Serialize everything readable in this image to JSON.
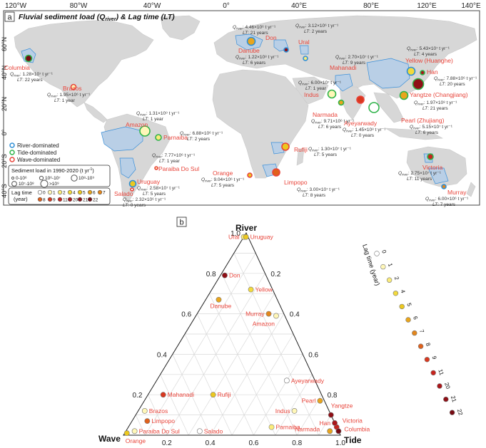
{
  "panel_a": {
    "label": "a",
    "title_main": "Fluvial sediment load (",
    "title_Q": "Q",
    "title_sub": "river",
    "title_mid": ") & Lag time (",
    "title_LT": "LT",
    "title_end": ")",
    "lon_labels": [
      "120°W",
      "80°W",
      "40°W",
      "0°",
      "40°E",
      "80°E",
      "120°E",
      "140°E"
    ],
    "lat_labels": [
      "60°N",
      "40°N",
      "20°N",
      "0°",
      "20°S",
      "40°S"
    ],
    "legend_type": [
      {
        "label": "River-dominated",
        "color": "#2f8fd6"
      },
      {
        "label": "Tide-dominated",
        "color": "#2fb34a"
      },
      {
        "label": "Wave-dominated",
        "color": "#e8443a"
      }
    ],
    "legend_size_title": "Sediment load in 1990-2020 (t yr",
    "legend_size_title_sup": "-1",
    "legend_size_title_end": ")",
    "legend_sizes": [
      "0-10⁶",
      "10⁶-10⁷",
      "10⁸-10⁹",
      "10⁷-10⁸",
      ">10⁹"
    ],
    "legend_lag_title1": "Lag time",
    "legend_lag_title2": "(year)",
    "rivers": [
      {
        "name": "Columbia",
        "q": "1.28×10⁷ t yr⁻¹",
        "lt": "22 years"
      },
      {
        "name": "Brazos",
        "q": "1.95×10⁶ t yr⁻¹",
        "lt": "1 year"
      },
      {
        "name": "Amazon",
        "q": "1.31×10⁹ t yr⁻¹",
        "lt": "1 year"
      },
      {
        "name": "Parnaiba",
        "q": "6.88×10⁶ t yr⁻¹",
        "lt": "2 years"
      },
      {
        "name": "Paraiba Do Sul",
        "q": "7.77×10⁶ t yr⁻¹",
        "lt": "1 year"
      },
      {
        "name": "Uruguay",
        "q": "2.58×10⁷ t yr⁻¹",
        "lt": "5 years"
      },
      {
        "name": "Salado",
        "q": "2.32×10⁶ t yr⁻¹",
        "lt": "0 years"
      },
      {
        "name": "Danube",
        "q": "1.22×10⁸ t yr⁻¹",
        "lt": "6 years"
      },
      {
        "name": "Don",
        "q": "4.46×10⁶ t yr⁻¹",
        "lt": "21 years"
      },
      {
        "name": "Ural",
        "q": "3.12×10⁶ t yr⁻¹",
        "lt": "2 years"
      },
      {
        "name": "Indus",
        "q": "6.00×10⁷ t yr⁻¹",
        "lt": "1 year"
      },
      {
        "name": "Mahanadi",
        "q": "2.70×10⁷ t yr⁻¹",
        "lt": "9 years"
      },
      {
        "name": "Narmada",
        "q": "9.71×10⁶ t yr⁻¹",
        "lt": "6 years"
      },
      {
        "name": "Ayeyarwady",
        "q": "1.45×10⁸ t yr⁻¹",
        "lt": "0 years"
      },
      {
        "name": "Yellow (Huanghe)",
        "q": "5.43×10⁷ t yr⁻¹",
        "lt": "4 years"
      },
      {
        "name": "Han",
        "q": "7.88×10⁶ t yr⁻¹",
        "lt": "20 years"
      },
      {
        "name": "Yangtze (Changjiang)",
        "q": "1.97×10⁸ t yr⁻¹",
        "lt": "21 years"
      },
      {
        "name": "Pearl (Zhujiang)",
        "q": "5.15×10⁷ t yr⁻¹",
        "lt": "6 years"
      },
      {
        "name": "Rufiji",
        "q": "1.30×10⁷ t yr⁻¹",
        "lt": "5 years"
      },
      {
        "name": "Orange",
        "q": "9.04×10⁶ t yr⁻¹",
        "lt": "5 years"
      },
      {
        "name": "Limpopo",
        "q": "3.00×10⁷ t yr⁻¹",
        "lt": "8 years"
      },
      {
        "name": "Victoria",
        "q": "2.75×10⁷ t yr⁻¹",
        "lt": "11 years"
      },
      {
        "name": "Murray",
        "q": "6.00×10⁶ t yr⁻¹",
        "lt": "7 years"
      }
    ]
  },
  "panel_b": {
    "label": "b",
    "corner_river": "River",
    "corner_wave": "Wave",
    "corner_tide": "Tide",
    "colorbar_title": "Lag time (year)",
    "tick_labels": [
      "0.2",
      "0.4",
      "0.6",
      "0.8",
      "1.0"
    ]
  },
  "lag_scale": [
    {
      "value": "0",
      "color": "#ffffff"
    },
    {
      "value": "1",
      "color": "#fff7b8"
    },
    {
      "value": "2",
      "color": "#fbec7a"
    },
    {
      "value": "4",
      "color": "#f3da3c"
    },
    {
      "value": "5",
      "color": "#ecc81f"
    },
    {
      "value": "6",
      "color": "#e9a51c"
    },
    {
      "value": "7",
      "color": "#e3861c"
    },
    {
      "value": "8",
      "color": "#e0611c"
    },
    {
      "value": "9",
      "color": "#d9381f"
    },
    {
      "value": "11",
      "color": "#c6231d"
    },
    {
      "value": "20",
      "color": "#a9161a"
    },
    {
      "value": "21",
      "color": "#8f0f16"
    },
    {
      "value": "22",
      "color": "#770a12"
    }
  ],
  "ternary_points": [
    {
      "name": "Ural",
      "river": 0.98,
      "wave": 0.02,
      "tide": 0.0,
      "lag": "2"
    },
    {
      "name": "Uruguay",
      "river": 0.98,
      "wave": 0.01,
      "tide": 0.01,
      "lag": "5"
    },
    {
      "name": "Don",
      "river": 0.79,
      "wave": 0.19,
      "tide": 0.02,
      "lag": "21"
    },
    {
      "name": "Yellow",
      "river": 0.72,
      "wave": 0.1,
      "tide": 0.18,
      "lag": "4"
    },
    {
      "name": "Danube",
      "river": 0.67,
      "wave": 0.27,
      "tide": 0.06,
      "lag": "6"
    },
    {
      "name": "Murray",
      "river": 0.6,
      "wave": 0.07,
      "tide": 0.33,
      "lag": "7"
    },
    {
      "name": "Amazon",
      "river": 0.59,
      "wave": 0.04,
      "tide": 0.37,
      "lag": "1"
    },
    {
      "name": "Ayeyarwady",
      "river": 0.27,
      "wave": 0.13,
      "tide": 0.6,
      "lag": "0"
    },
    {
      "name": "Mahanadi",
      "river": 0.2,
      "wave": 0.73,
      "tide": 0.07,
      "lag": "9"
    },
    {
      "name": "Rufiji",
      "river": 0.2,
      "wave": 0.5,
      "tide": 0.3,
      "lag": "5"
    },
    {
      "name": "Pearl",
      "river": 0.17,
      "wave": 0.02,
      "tide": 0.81,
      "lag": "6"
    },
    {
      "name": "Indus",
      "river": 0.12,
      "wave": 0.16,
      "tide": 0.72,
      "lag": "1"
    },
    {
      "name": "Brazos",
      "river": 0.12,
      "wave": 0.85,
      "tide": 0.03,
      "lag": "1"
    },
    {
      "name": "Limpopo",
      "river": 0.07,
      "wave": 0.86,
      "tide": 0.07,
      "lag": "8"
    },
    {
      "name": "Parnaiba",
      "river": 0.04,
      "wave": 0.3,
      "tide": 0.66,
      "lag": "2"
    },
    {
      "name": "Paraiba Do Sul",
      "river": 0.02,
      "wave": 0.94,
      "tide": 0.04,
      "lag": "1"
    },
    {
      "name": "Salado",
      "river": 0.02,
      "wave": 0.64,
      "tide": 0.34,
      "lag": "0"
    },
    {
      "name": "Orange",
      "river": 0.01,
      "wave": 0.98,
      "tide": 0.01,
      "lag": "5"
    },
    {
      "name": "Narmada",
      "river": 0.02,
      "wave": 0.04,
      "tide": 0.94,
      "lag": "6"
    },
    {
      "name": "Yangtze",
      "river": 0.1,
      "wave": 0.0,
      "tide": 0.9,
      "lag": "21"
    },
    {
      "name": "Victoria",
      "river": 0.04,
      "wave": 0.0,
      "tide": 0.96,
      "lag": "11"
    },
    {
      "name": "Han",
      "river": 0.06,
      "wave": 0.0,
      "tide": 0.94,
      "lag": "20"
    },
    {
      "name": "Columbia",
      "river": 0.02,
      "wave": 0.0,
      "tide": 0.98,
      "lag": "22"
    }
  ]
}
